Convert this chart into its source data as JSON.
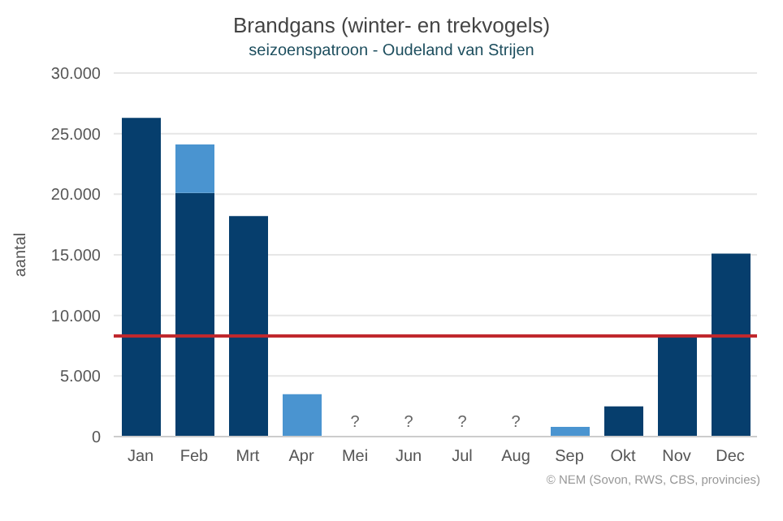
{
  "chart_data": {
    "type": "bar",
    "title": "Brandgans (winter- en trekvogels)",
    "subtitle": "seizoenspatroon - Oudeland van Strijen",
    "ylabel": "aantal",
    "categories": [
      "Jan",
      "Feb",
      "Mrt",
      "Apr",
      "Mei",
      "Jun",
      "Jul",
      "Aug",
      "Sep",
      "Okt",
      "Nov",
      "Dec"
    ],
    "series": [
      {
        "color": "#063e6d",
        "values": [
          26300,
          20100,
          18200,
          null,
          null,
          null,
          null,
          null,
          null,
          2500,
          8300,
          15100
        ],
        "value_labels": [
          null,
          null,
          null,
          null,
          "?",
          "?",
          "?",
          "?",
          null,
          null,
          null,
          null
        ]
      },
      {
        "color": "#4a94d0",
        "values": [
          null,
          4000,
          null,
          3500,
          null,
          null,
          null,
          null,
          800,
          null,
          null,
          null
        ]
      }
    ],
    "stacked": true,
    "ylim": [
      0,
      30000
    ],
    "yticks": [
      {
        "value": 0,
        "label": "0"
      },
      {
        "value": 5000,
        "label": "5.000"
      },
      {
        "value": 10000,
        "label": "10.000"
      },
      {
        "value": 15000,
        "label": "15.000"
      },
      {
        "value": 20000,
        "label": "20.000"
      },
      {
        "value": 25000,
        "label": "25.000"
      },
      {
        "value": 30000,
        "label": "30.000"
      }
    ],
    "grid": "y",
    "legend": false,
    "ref_lines": [
      {
        "axis": "y",
        "value": 8300,
        "color": "#c0282d"
      }
    ],
    "annotations": [
      "© NEM (Sovon, RWS, CBS, provincies)"
    ]
  }
}
